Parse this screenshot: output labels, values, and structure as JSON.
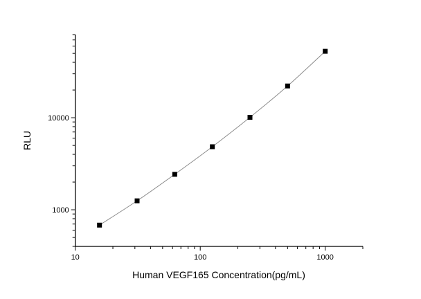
{
  "chart_data": {
    "type": "scatter",
    "title": "",
    "xlabel": "Human VEGF165 Concentration(pg/mL)",
    "ylabel": "RLU",
    "xscale": "log",
    "yscale": "log",
    "xlim": [
      10,
      2000
    ],
    "ylim": [
      400,
      80000
    ],
    "xticks": [
      10,
      100,
      1000
    ],
    "xtick_labels": [
      "10",
      "100",
      "1000"
    ],
    "yticks": [
      1000,
      10000
    ],
    "ytick_labels": [
      "1000",
      "10000"
    ],
    "grid": false,
    "legend": "none",
    "marker": "square",
    "fit_line": true,
    "colors": {
      "marker": "#000000",
      "line": "#8c8c8c"
    },
    "series": [
      {
        "x": [
          15.625,
          31.25,
          62.5,
          125,
          250,
          500,
          1000
        ],
        "y": [
          681,
          1251,
          2427,
          4842,
          10100,
          22130,
          52700
        ]
      }
    ]
  }
}
